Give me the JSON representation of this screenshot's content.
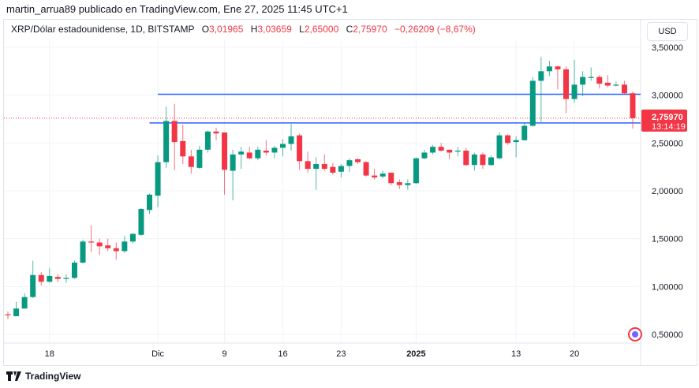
{
  "header": {
    "publisher": "martin_arrua89 publicado en TradingView.com, Ene 27, 2025 11:45 UTC+1"
  },
  "legend": {
    "symbol": "XRP/Dólar estadounidense, 1D, BITSTAMP",
    "o_label": "O",
    "o": "3,01965",
    "h_label": "H",
    "h": "3,03659",
    "l_label": "L",
    "l": "2,65000",
    "c_label": "C",
    "c": "2,75970",
    "change": "−0,26209 (−8,67%)"
  },
  "currency_button": "USD",
  "footer": {
    "brand": "TradingView"
  },
  "colors": {
    "up": "#089981",
    "down": "#f23645",
    "hline": "#2962ff"
  },
  "price_tag": {
    "price": "2,75970",
    "countdown": "13:14:19"
  },
  "chart_data": {
    "type": "candlestick",
    "title": "XRP/Dólar estadounidense, 1D, BITSTAMP",
    "ylim": [
      0.4,
      3.6
    ],
    "y_ticks": [
      {
        "v": 3.5,
        "label": "3,50000"
      },
      {
        "v": 3.0,
        "label": "3,00000"
      },
      {
        "v": 2.5,
        "label": "2,50000"
      },
      {
        "v": 2.0,
        "label": "2,00000"
      },
      {
        "v": 1.5,
        "label": "1,50000"
      },
      {
        "v": 1.0,
        "label": "1,00000"
      },
      {
        "v": 0.5,
        "label": "0,50000"
      }
    ],
    "x_ticks": [
      {
        "i": 5,
        "label": "18"
      },
      {
        "i": 18,
        "label": "Dic"
      },
      {
        "i": 26,
        "label": "9"
      },
      {
        "i": 33,
        "label": "16"
      },
      {
        "i": 40,
        "label": "23"
      },
      {
        "i": 49,
        "label": "2025"
      },
      {
        "i": 61,
        "label": "13"
      },
      {
        "i": 68,
        "label": "20"
      }
    ],
    "first_date": "2024-11-13",
    "last_price": 2.7597,
    "hlines": [
      {
        "price": 3.01,
        "from_i": 18
      },
      {
        "price": 2.71,
        "from_i": 17
      }
    ],
    "ohlc": [
      [
        0.71,
        0.74,
        0.66,
        0.7
      ],
      [
        0.69,
        0.84,
        0.69,
        0.77
      ],
      [
        0.77,
        0.93,
        0.77,
        0.89
      ],
      [
        0.89,
        1.27,
        0.88,
        1.12
      ],
      [
        1.12,
        1.15,
        1.01,
        1.05
      ],
      [
        1.05,
        1.19,
        1.04,
        1.11
      ],
      [
        1.1,
        1.13,
        1.05,
        1.08
      ],
      [
        1.08,
        1.13,
        1.04,
        1.09
      ],
      [
        1.09,
        1.27,
        1.08,
        1.25
      ],
      [
        1.25,
        1.49,
        1.24,
        1.47
      ],
      [
        1.47,
        1.64,
        1.36,
        1.46
      ],
      [
        1.46,
        1.5,
        1.33,
        1.42
      ],
      [
        1.43,
        1.5,
        1.37,
        1.4
      ],
      [
        1.4,
        1.46,
        1.28,
        1.37
      ],
      [
        1.37,
        1.53,
        1.35,
        1.47
      ],
      [
        1.47,
        1.56,
        1.45,
        1.55
      ],
      [
        1.54,
        1.82,
        1.53,
        1.81
      ],
      [
        1.8,
        1.97,
        1.76,
        1.96
      ],
      [
        1.95,
        2.37,
        1.83,
        2.3
      ],
      [
        2.3,
        2.88,
        2.24,
        2.73
      ],
      [
        2.73,
        2.91,
        2.22,
        2.51
      ],
      [
        2.52,
        2.69,
        2.28,
        2.36
      ],
      [
        2.36,
        2.43,
        2.18,
        2.25
      ],
      [
        2.24,
        2.47,
        2.23,
        2.43
      ],
      [
        2.43,
        2.63,
        2.4,
        2.62
      ],
      [
        2.62,
        2.66,
        2.53,
        2.6
      ],
      [
        2.61,
        2.61,
        1.96,
        2.22
      ],
      [
        2.21,
        2.43,
        1.9,
        2.38
      ],
      [
        2.38,
        2.46,
        2.23,
        2.41
      ],
      [
        2.4,
        2.46,
        2.33,
        2.34
      ],
      [
        2.34,
        2.46,
        2.32,
        2.43
      ],
      [
        2.42,
        2.53,
        2.37,
        2.4
      ],
      [
        2.4,
        2.47,
        2.34,
        2.45
      ],
      [
        2.45,
        2.54,
        2.36,
        2.49
      ],
      [
        2.49,
        2.7,
        2.42,
        2.57
      ],
      [
        2.58,
        2.6,
        2.22,
        2.31
      ],
      [
        2.31,
        2.41,
        2.19,
        2.23
      ],
      [
        2.23,
        2.35,
        2.01,
        2.28
      ],
      [
        2.28,
        2.38,
        2.21,
        2.23
      ],
      [
        2.25,
        2.29,
        2.17,
        2.19
      ],
      [
        2.2,
        2.28,
        2.14,
        2.26
      ],
      [
        2.26,
        2.34,
        2.2,
        2.32
      ],
      [
        2.33,
        2.34,
        2.28,
        2.3
      ],
      [
        2.3,
        2.31,
        2.15,
        2.16
      ],
      [
        2.16,
        2.23,
        2.12,
        2.14
      ],
      [
        2.15,
        2.21,
        2.13,
        2.18
      ],
      [
        2.19,
        2.19,
        2.06,
        2.08
      ],
      [
        2.09,
        2.12,
        2.02,
        2.06
      ],
      [
        2.06,
        2.12,
        2.01,
        2.08
      ],
      [
        2.08,
        2.35,
        2.07,
        2.34
      ],
      [
        2.34,
        2.43,
        2.33,
        2.4
      ],
      [
        2.4,
        2.48,
        2.38,
        2.46
      ],
      [
        2.46,
        2.5,
        2.41,
        2.42
      ],
      [
        2.43,
        2.43,
        2.33,
        2.4
      ],
      [
        2.41,
        2.46,
        2.36,
        2.42
      ],
      [
        2.42,
        2.45,
        2.26,
        2.27
      ],
      [
        2.27,
        2.4,
        2.21,
        2.38
      ],
      [
        2.38,
        2.4,
        2.23,
        2.27
      ],
      [
        2.27,
        2.37,
        2.26,
        2.35
      ],
      [
        2.34,
        2.61,
        2.33,
        2.58
      ],
      [
        2.58,
        2.59,
        2.48,
        2.5
      ],
      [
        2.51,
        2.57,
        2.35,
        2.53
      ],
      [
        2.53,
        2.71,
        2.52,
        2.68
      ],
      [
        2.68,
        3.19,
        2.67,
        3.15
      ],
      [
        3.15,
        3.4,
        2.72,
        3.25
      ],
      [
        3.25,
        3.36,
        3.2,
        3.3
      ],
      [
        3.3,
        3.31,
        3.06,
        3.27
      ],
      [
        3.27,
        3.3,
        2.81,
        2.96
      ],
      [
        2.96,
        3.37,
        2.92,
        3.11
      ],
      [
        3.11,
        3.25,
        2.99,
        3.19
      ],
      [
        3.18,
        3.29,
        3.15,
        3.19
      ],
      [
        3.19,
        3.21,
        3.07,
        3.12
      ],
      [
        3.13,
        3.21,
        3.08,
        3.1
      ],
      [
        3.1,
        3.14,
        3.09,
        3.11
      ],
      [
        3.11,
        3.15,
        3.01,
        3.02
      ],
      [
        3.02,
        3.04,
        2.65,
        2.76
      ]
    ]
  }
}
